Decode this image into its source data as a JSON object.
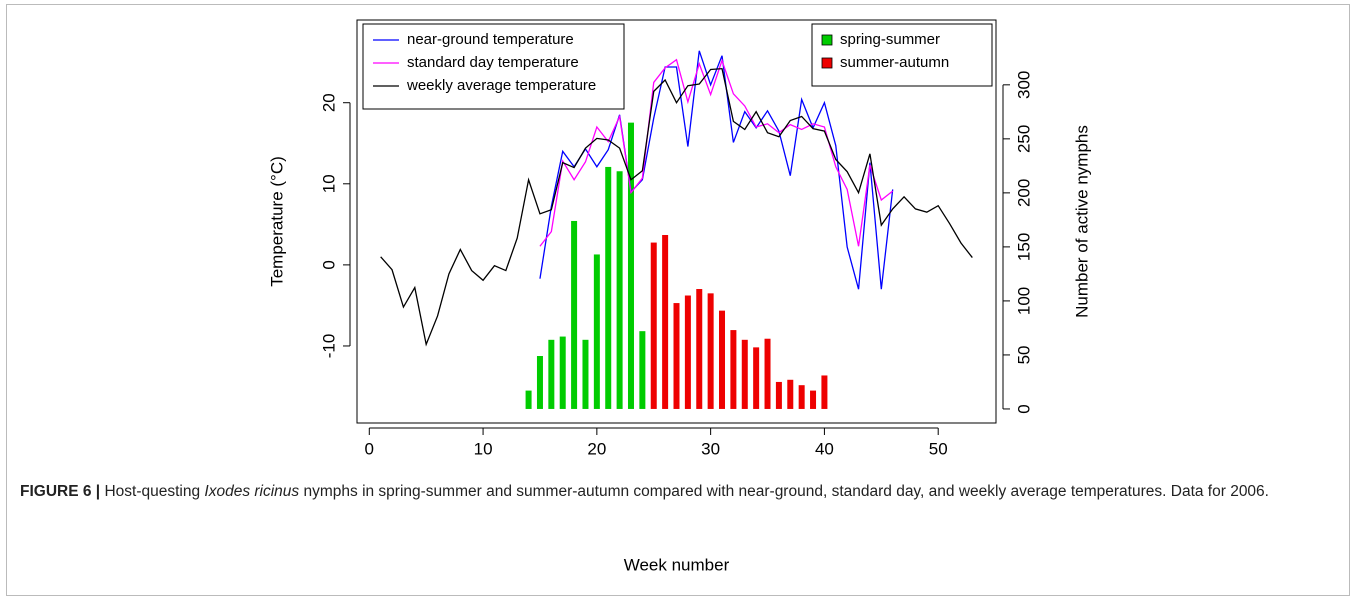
{
  "chart_data": {
    "type": "line",
    "xlabel": "Week number",
    "ylabel": "Temperature (°C)",
    "y2label": "Number of active nymphs",
    "xlim": [
      -1.08,
      55.08
    ],
    "xticks": [
      0,
      10,
      20,
      30,
      40,
      50
    ],
    "ylim": [
      -19.5,
      30.2
    ],
    "yticks": [
      -10,
      0,
      10,
      20
    ],
    "y2lim": [
      -13,
      360
    ],
    "y2ticks": [
      0,
      50,
      100,
      150,
      200,
      250,
      300
    ],
    "line_legend": "topleft",
    "bar_legend": "topright",
    "series": [
      {
        "name": "near-ground temperature",
        "color": "#0000ff",
        "type": "line",
        "axis": "y",
        "x": [
          15,
          16,
          17,
          18,
          19,
          20,
          21,
          22,
          23,
          24,
          25,
          26,
          27,
          28,
          29,
          30,
          31,
          32,
          33,
          34,
          35,
          36,
          37,
          38,
          39,
          40,
          41,
          42,
          43,
          44,
          45,
          46
        ],
        "values": [
          -1.7,
          7.2,
          14.0,
          12.1,
          14.3,
          12.1,
          14.2,
          18.5,
          9.0,
          10.5,
          18.1,
          24.4,
          24.4,
          14.6,
          26.4,
          22.2,
          25.8,
          15.1,
          18.9,
          16.9,
          19.0,
          16.5,
          11.0,
          20.4,
          16.9,
          20.0,
          14.7,
          2.2,
          -3.0,
          12.6,
          -3.0,
          9.3
        ]
      },
      {
        "name": "standard day temperature",
        "color": "#ff00ff",
        "type": "line",
        "axis": "y",
        "x": [
          15,
          16,
          17,
          18,
          19,
          20,
          21,
          22,
          23,
          24,
          25,
          26,
          27,
          28,
          29,
          30,
          31,
          32,
          33,
          34,
          35,
          36,
          37,
          38,
          39,
          40,
          41,
          42,
          43,
          44,
          45,
          46
        ],
        "values": [
          2.3,
          4.1,
          12.8,
          10.5,
          12.7,
          17.0,
          15.2,
          18.3,
          8.9,
          10.7,
          22.5,
          24.3,
          25.3,
          20.1,
          24.8,
          21.0,
          25.2,
          21.1,
          19.6,
          17.0,
          17.4,
          16.3,
          17.3,
          16.7,
          17.4,
          17.0,
          12.1,
          9.3,
          2.3,
          12.3,
          8.0,
          9.1
        ]
      },
      {
        "name": "weekly average temperature",
        "color": "#000000",
        "type": "line",
        "axis": "y",
        "x": [
          1,
          2,
          3,
          4,
          5,
          6,
          7,
          8,
          9,
          10,
          11,
          12,
          13,
          14,
          15,
          16,
          17,
          18,
          19,
          20,
          21,
          22,
          23,
          24,
          25,
          26,
          27,
          28,
          29,
          30,
          31,
          32,
          33,
          34,
          35,
          36,
          37,
          38,
          39,
          40,
          41,
          42,
          43,
          44,
          45,
          46,
          47,
          48,
          49,
          50,
          51,
          52,
          53
        ],
        "values": [
          1.0,
          -0.6,
          -5.2,
          -2.8,
          -9.8,
          -6.3,
          -1.1,
          1.9,
          -0.7,
          -1.9,
          -0.1,
          -0.7,
          3.3,
          10.5,
          6.3,
          6.8,
          12.6,
          12.0,
          14.4,
          15.6,
          15.4,
          14.4,
          10.5,
          11.6,
          21.4,
          22.8,
          20.0,
          22.1,
          22.3,
          24.1,
          24.2,
          17.7,
          16.7,
          18.9,
          16.3,
          15.8,
          17.8,
          18.3,
          16.8,
          16.5,
          13.0,
          11.5,
          8.9,
          13.7,
          4.9,
          6.9,
          8.4,
          6.9,
          6.5,
          7.3,
          5.1,
          2.7,
          0.9
        ]
      },
      {
        "name": "spring-summer",
        "color": "#00cc00",
        "type": "bar",
        "axis": "y2",
        "x": [
          14,
          15,
          16,
          17,
          18,
          19,
          20,
          21,
          22,
          23,
          24
        ],
        "values": [
          17,
          49,
          64,
          67,
          174,
          64,
          143,
          224,
          220,
          265,
          72
        ]
      },
      {
        "name": "summer-autumn",
        "color": "#ee0000",
        "type": "bar",
        "axis": "y2",
        "x": [
          25,
          26,
          27,
          28,
          29,
          30,
          31,
          32,
          33,
          34,
          35,
          36,
          37,
          38,
          39,
          40
        ],
        "values": [
          154,
          161,
          98,
          105,
          111,
          107,
          91,
          73,
          64,
          57,
          65,
          25,
          27,
          22,
          17,
          31
        ]
      }
    ],
    "caption": {
      "label": "FIGURE 6 |",
      "before": "Host-questing",
      "species": "Ixodes ricinus",
      "after": "nymphs in spring-summer and summer-autumn compared with near-ground, standard day, and weekly average temperatures. Data for 2006."
    }
  }
}
